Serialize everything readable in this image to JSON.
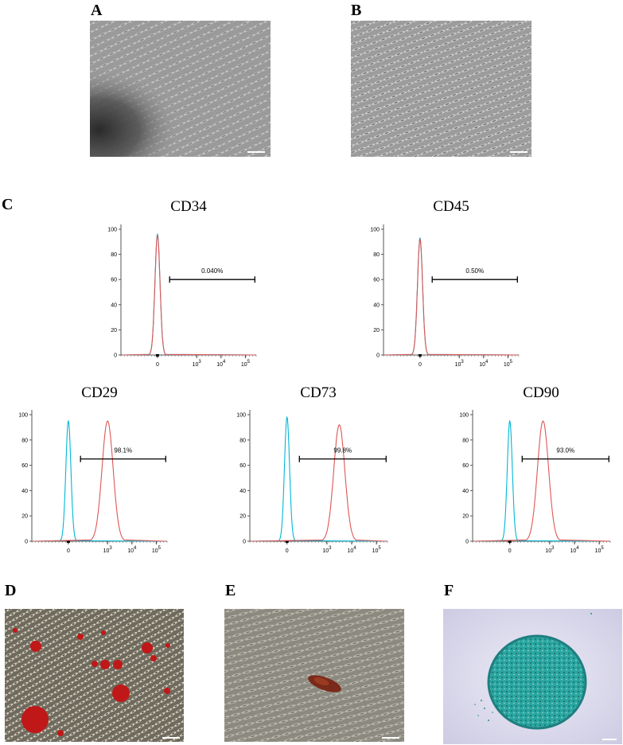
{
  "panels": {
    "A": "A",
    "B": "B",
    "C": "C",
    "D": "D",
    "E": "E",
    "F": "F"
  },
  "colors": {
    "isotype": "#00b7d6",
    "marker": "#e05555",
    "gate": "#000000",
    "alizarin": "#c01818",
    "alcian": "#2aa6a0"
  },
  "chart_data": [
    {
      "type": "line",
      "title": "CD34",
      "x_axis": "biexponential",
      "x_ticks": [
        "0",
        "10^3",
        "10^4",
        "10^5"
      ],
      "y_ticks": [
        0,
        20,
        40,
        60,
        80,
        100
      ],
      "ylim": [
        0,
        100
      ],
      "series": [
        {
          "color": "#00b7d6",
          "peak_x": "0",
          "peak_y": 96
        },
        {
          "color": "#e05555",
          "peak_x": "0",
          "peak_y": 95
        }
      ],
      "gate_label": "0.040%",
      "gate_y": 60
    },
    {
      "type": "line",
      "title": "CD45",
      "x_axis": "biexponential",
      "x_ticks": [
        "0",
        "10^3",
        "10^4",
        "10^5"
      ],
      "y_ticks": [
        0,
        20,
        40,
        60,
        80,
        100
      ],
      "ylim": [
        0,
        100
      ],
      "series": [
        {
          "color": "#00b7d6",
          "peak_x": "0",
          "peak_y": 93
        },
        {
          "color": "#e05555",
          "peak_x": "0",
          "peak_y": 92
        }
      ],
      "gate_label": "0.50%",
      "gate_y": 60
    },
    {
      "type": "line",
      "title": "CD29",
      "x_axis": "biexponential",
      "x_ticks": [
        "0",
        "10^3",
        "10^4",
        "10^5"
      ],
      "y_ticks": [
        0,
        20,
        40,
        60,
        80,
        100
      ],
      "ylim": [
        0,
        100
      ],
      "series": [
        {
          "color": "#00b7d6",
          "peak_x": "0",
          "peak_y": 95
        },
        {
          "color": "#e05555",
          "peak_x": "10^3",
          "peak_y": 95
        }
      ],
      "gate_label": "98.1%",
      "gate_y": 65
    },
    {
      "type": "line",
      "title": "CD73",
      "x_axis": "biexponential",
      "x_ticks": [
        "0",
        "10^3",
        "10^4",
        "10^5"
      ],
      "y_ticks": [
        0,
        20,
        40,
        60,
        80,
        100
      ],
      "ylim": [
        0,
        100
      ],
      "series": [
        {
          "color": "#00b7d6",
          "peak_x": "0",
          "peak_y": 98
        },
        {
          "color": "#e05555",
          "peak_x": "10^3.5",
          "peak_y": 92
        }
      ],
      "gate_label": "99.8%",
      "gate_y": 65
    },
    {
      "type": "line",
      "title": "CD90",
      "x_axis": "biexponential",
      "x_ticks": [
        "0",
        "10^3",
        "10^4",
        "10^5"
      ],
      "y_ticks": [
        0,
        20,
        40,
        60,
        80,
        100
      ],
      "ylim": [
        0,
        100
      ],
      "series": [
        {
          "color": "#00b7d6",
          "peak_x": "0",
          "peak_y": 95
        },
        {
          "color": "#e05555",
          "peak_x": "10^2.5",
          "peak_y": 95
        }
      ],
      "gate_label": "93.0%",
      "gate_y": 65
    }
  ]
}
